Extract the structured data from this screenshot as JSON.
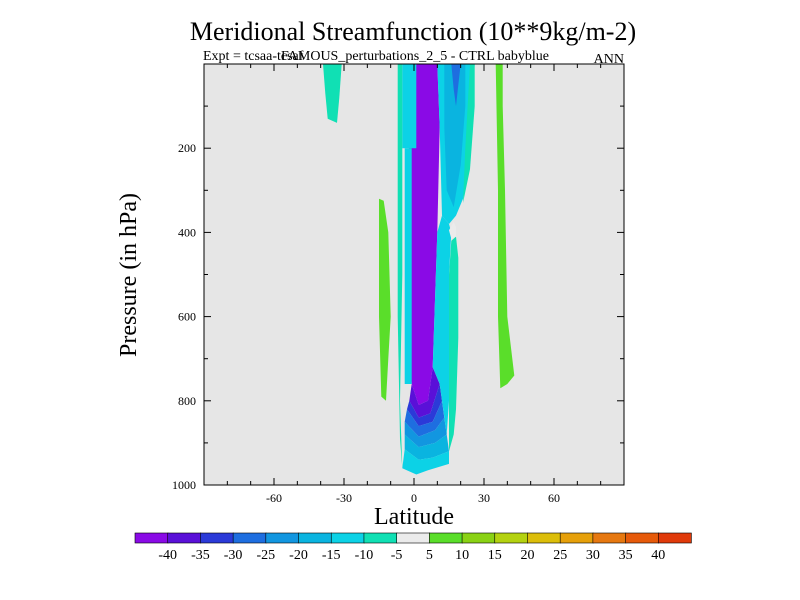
{
  "chart_data": {
    "type": "contour",
    "title": "Meridional Streamfunction (10**9kg/m-2)",
    "subtitle_left": "Expt = tcsaa-tcsaf",
    "subtitle_center": "FAMOUS_perturbations_2_5 - CTRL babyblue",
    "subtitle_right": "ANN",
    "xlabel": "Latitude",
    "ylabel": "Pressure (in hPa)",
    "xlim": [
      -90,
      90
    ],
    "ylim": [
      1000,
      0
    ],
    "xticks": [
      -60,
      -30,
      0,
      30,
      60
    ],
    "xtick_labels": [
      "-60",
      "-30",
      "0",
      "30",
      "60"
    ],
    "yticks": [
      200,
      400,
      600,
      800,
      1000
    ],
    "ytick_labels": [
      "200",
      "400",
      "600",
      "800",
      "1000"
    ],
    "levels": [
      -40,
      -35,
      -30,
      -25,
      -20,
      -15,
      -10,
      -5,
      5,
      10,
      15,
      20,
      25,
      30,
      35,
      40
    ],
    "level_labels": [
      "-40",
      "-35",
      "-30",
      "-25",
      "-20",
      "-15",
      "-10",
      "-5",
      "5",
      "10",
      "15",
      "20",
      "25",
      "30",
      "35",
      "40"
    ],
    "colors": [
      "#8a0ae6",
      "#5a10d8",
      "#2b3ad8",
      "#1e6ee0",
      "#1296e0",
      "#0ab4e0",
      "#0cd2e6",
      "#10e0b4",
      "#ebebeb",
      "#5ade2a",
      "#8ad214",
      "#b4d210",
      "#dcbe0a",
      "#e6a00a",
      "#e67810",
      "#e65a0a",
      "#e03a0a"
    ],
    "background_color": "#e6e6e6",
    "regions": [
      {
        "name": "min-column",
        "level_index": 0,
        "points": [
          [
            1,
            0
          ],
          [
            10,
            0
          ],
          [
            11,
            150
          ],
          [
            10,
            400
          ],
          [
            9,
            560
          ],
          [
            8,
            720
          ],
          [
            6,
            800
          ],
          [
            2,
            810
          ],
          [
            -1,
            760
          ],
          [
            -3,
            600
          ],
          [
            -3,
            400
          ],
          [
            -2,
            150
          ]
        ]
      },
      {
        "name": "wall-upper-left",
        "level_index": 6,
        "points": [
          [
            -5,
            0
          ],
          [
            1,
            0
          ],
          [
            1,
            200
          ],
          [
            -5,
            200
          ]
        ]
      },
      {
        "name": "wall-mid-left",
        "level_index": 6,
        "points": [
          [
            -4,
            200
          ],
          [
            -1,
            200
          ],
          [
            -1,
            760
          ],
          [
            -4,
            760
          ]
        ]
      },
      {
        "name": "ring-1",
        "level_index": 1,
        "points": [
          [
            8,
            720
          ],
          [
            11,
            760
          ],
          [
            7,
            830
          ],
          [
            2,
            840
          ],
          [
            -2,
            800
          ],
          [
            -1,
            760
          ],
          [
            2,
            810
          ],
          [
            6,
            800
          ]
        ]
      },
      {
        "name": "ring-2",
        "level_index": 2,
        "points": [
          [
            11,
            760
          ],
          [
            12,
            800
          ],
          [
            8,
            850
          ],
          [
            2,
            860
          ],
          [
            -3,
            820
          ],
          [
            -2,
            800
          ],
          [
            2,
            840
          ],
          [
            7,
            830
          ]
        ]
      },
      {
        "name": "ring-3",
        "level_index": 3,
        "points": [
          [
            12,
            800
          ],
          [
            13,
            840
          ],
          [
            9,
            870
          ],
          [
            2,
            885
          ],
          [
            -4,
            850
          ],
          [
            -3,
            820
          ],
          [
            2,
            860
          ],
          [
            8,
            850
          ]
        ]
      },
      {
        "name": "ring-4",
        "level_index": 4,
        "points": [
          [
            13,
            840
          ],
          [
            14,
            880
          ],
          [
            9,
            900
          ],
          [
            2,
            910
          ],
          [
            -4,
            880
          ],
          [
            -4,
            850
          ],
          [
            2,
            885
          ],
          [
            9,
            870
          ]
        ]
      },
      {
        "name": "ring-5",
        "level_index": 5,
        "points": [
          [
            14,
            880
          ],
          [
            15,
            920
          ],
          [
            8,
            935
          ],
          [
            2,
            940
          ],
          [
            -4,
            915
          ],
          [
            -4,
            880
          ],
          [
            2,
            910
          ],
          [
            9,
            900
          ]
        ]
      },
      {
        "name": "ring-6",
        "level_index": 6,
        "points": [
          [
            15,
            920
          ],
          [
            15,
            950
          ],
          [
            6,
            965
          ],
          [
            1,
            975
          ],
          [
            -5,
            960
          ],
          [
            -4,
            915
          ],
          [
            2,
            940
          ],
          [
            8,
            935
          ]
        ]
      },
      {
        "name": "cyan-right-upper",
        "level_index": 6,
        "points": [
          [
            10,
            0
          ],
          [
            26,
            0
          ],
          [
            25,
            100
          ],
          [
            24,
            200
          ],
          [
            21,
            320
          ],
          [
            18,
            360
          ],
          [
            15,
            380
          ],
          [
            12,
            360
          ],
          [
            11,
            150
          ]
        ]
      },
      {
        "name": "cyan-right-lower",
        "level_index": 6,
        "points": [
          [
            12,
            360
          ],
          [
            15,
            380
          ],
          [
            16,
            400
          ],
          [
            15,
            500
          ],
          [
            15,
            650
          ],
          [
            15,
            800
          ],
          [
            14,
            880
          ],
          [
            11,
            760
          ],
          [
            8,
            720
          ],
          [
            9,
            560
          ],
          [
            10,
            400
          ]
        ]
      },
      {
        "name": "turq-right-lower",
        "level_index": 7,
        "points": [
          [
            16,
            420
          ],
          [
            18,
            410
          ],
          [
            19,
            460
          ],
          [
            19,
            650
          ],
          [
            18,
            820
          ],
          [
            17,
            880
          ],
          [
            15,
            920
          ],
          [
            15,
            800
          ],
          [
            15,
            650
          ],
          [
            15,
            500
          ]
        ]
      },
      {
        "name": "cyan-outer-left",
        "level_index": 7,
        "points": [
          [
            -7,
            0
          ],
          [
            -5,
            0
          ],
          [
            -5,
            200
          ],
          [
            -5,
            500
          ],
          [
            -6,
            800
          ],
          [
            -5,
            960
          ],
          [
            -6,
            890
          ],
          [
            -7,
            600
          ],
          [
            -7,
            300
          ]
        ]
      },
      {
        "name": "blue-inner-right",
        "level_index": 5,
        "points": [
          [
            13,
            0
          ],
          [
            22,
            0
          ],
          [
            22,
            100
          ],
          [
            20,
            240
          ],
          [
            17,
            340
          ],
          [
            14,
            300
          ],
          [
            13,
            150
          ]
        ]
      },
      {
        "name": "blue-core-right",
        "level_index": 3,
        "points": [
          [
            16,
            0
          ],
          [
            20,
            0
          ],
          [
            19,
            50
          ],
          [
            18,
            100
          ],
          [
            17,
            60
          ]
        ]
      },
      {
        "name": "turq-right-upper",
        "level_index": 7,
        "points": [
          [
            24,
            0
          ],
          [
            26,
            0
          ],
          [
            26,
            100
          ],
          [
            24,
            250
          ],
          [
            21,
            330
          ],
          [
            22,
            200
          ]
        ]
      },
      {
        "name": "hole-white",
        "level_index": 8,
        "points": [
          [
            15,
            395
          ],
          [
            17,
            375
          ],
          [
            18,
            388
          ],
          [
            18,
            410
          ],
          [
            16,
            415
          ]
        ]
      },
      {
        "name": "left-turquoise",
        "level_index": 7,
        "points": [
          [
            -39,
            0
          ],
          [
            -31,
            0
          ],
          [
            -32,
            80
          ],
          [
            -33,
            140
          ],
          [
            -37,
            130
          ],
          [
            -38,
            70
          ]
        ]
      },
      {
        "name": "green-left",
        "level_index": 9,
        "points": [
          [
            -15,
            320
          ],
          [
            -13,
            325
          ],
          [
            -11,
            400
          ],
          [
            -10,
            600
          ],
          [
            -11,
            700
          ],
          [
            -12,
            800
          ],
          [
            -14,
            790
          ],
          [
            -15,
            600
          ]
        ]
      },
      {
        "name": "green-right",
        "level_index": 9,
        "points": [
          [
            35,
            0
          ],
          [
            38,
            0
          ],
          [
            38,
            100
          ],
          [
            39,
            300
          ],
          [
            40,
            600
          ],
          [
            43,
            740
          ],
          [
            40,
            760
          ],
          [
            37,
            770
          ],
          [
            36,
            600
          ],
          [
            36,
            300
          ]
        ]
      }
    ]
  }
}
